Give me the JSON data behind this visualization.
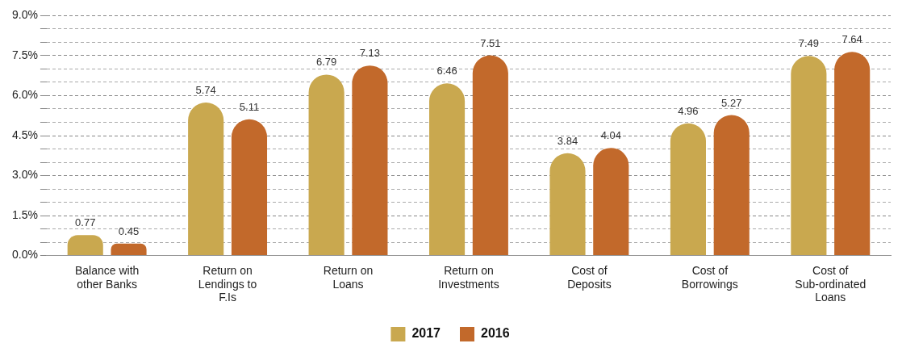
{
  "chart_data": {
    "type": "bar",
    "categories": [
      "Balance with other Banks",
      "Return on Lendings to F.Is",
      "Return on Loans",
      "Return on Investments",
      "Cost of Deposits",
      "Cost of Borrowings",
      "Cost of Sub-ordinated Loans"
    ],
    "series": [
      {
        "name": "2017",
        "color": "#c9a84f",
        "values": [
          0.77,
          5.74,
          6.79,
          6.46,
          3.84,
          4.96,
          7.49
        ]
      },
      {
        "name": "2016",
        "color": "#c2692b",
        "values": [
          0.45,
          5.11,
          7.13,
          7.51,
          4.04,
          5.27,
          7.64
        ]
      }
    ],
    "ylim": [
      0,
      9
    ],
    "yticks": [
      {
        "value": 0,
        "label": "0.0%"
      },
      {
        "value": 0.5,
        "label": null
      },
      {
        "value": 1,
        "label": null
      },
      {
        "value": 1.5,
        "label": "1.5%"
      },
      {
        "value": 2,
        "label": null
      },
      {
        "value": 2.5,
        "label": null
      },
      {
        "value": 3,
        "label": "3.0%"
      },
      {
        "value": 3.5,
        "label": null
      },
      {
        "value": 4,
        "label": null
      },
      {
        "value": 4.5,
        "label": "4.5%"
      },
      {
        "value": 5,
        "label": null
      },
      {
        "value": 5.5,
        "label": null
      },
      {
        "value": 6,
        "label": "6.0%"
      },
      {
        "value": 6.5,
        "label": null
      },
      {
        "value": 7,
        "label": null
      },
      {
        "value": 7.5,
        "label": "7.5%"
      },
      {
        "value": 8,
        "label": null
      },
      {
        "value": 8.5,
        "label": null
      },
      {
        "value": 9,
        "label": "9.0%"
      }
    ],
    "grid": "y",
    "legend": "bottom",
    "data_labels": true
  }
}
